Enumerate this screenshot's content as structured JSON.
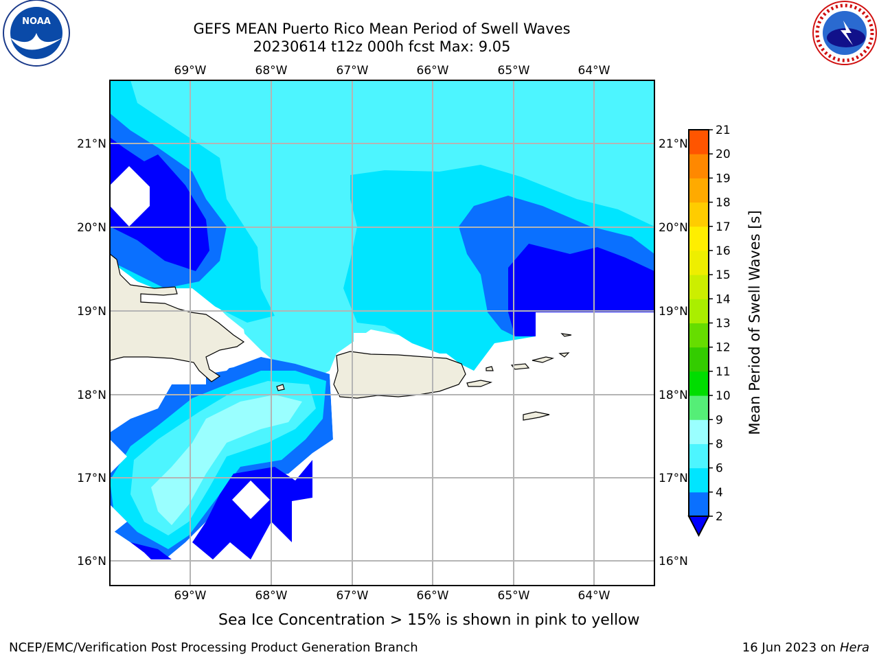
{
  "title": {
    "line1": "GEFS MEAN Puerto Rico Mean Period of Swell Waves",
    "line2": "20230614 t12z 000h fcst   Max: 9.05"
  },
  "map": {
    "lon_ticks": [
      "69°W",
      "68°W",
      "67°W",
      "66°W",
      "65°W",
      "64°W"
    ],
    "lat_ticks": [
      "21°N",
      "20°N",
      "19°N",
      "18°N",
      "17°N",
      "16°N"
    ],
    "lon_range": [
      -70,
      -63.25
    ],
    "lat_range": [
      15.7,
      21.75
    ]
  },
  "colorbar": {
    "label": "Mean Period of Swell Waves [s]",
    "ticks": [
      "2",
      "4",
      "6",
      "8",
      "9",
      "10",
      "11",
      "12",
      "13",
      "14",
      "15",
      "16",
      "17",
      "18",
      "19",
      "20",
      "21"
    ],
    "colors": [
      "#0a70ff",
      "#00e5ff",
      "#4df5ff",
      "#9affff",
      "#55ee77",
      "#00dd00",
      "#33cc00",
      "#66dd00",
      "#aaee00",
      "#ccee00",
      "#eeee00",
      "#ffee00",
      "#ffcc00",
      "#ffaa00",
      "#ff8800",
      "#ff5500",
      "#ff2a00",
      "#ff0000"
    ],
    "under_color": "#0000ff"
  },
  "colors": {
    "land": "#efedde",
    "grid": "#b4b4b4",
    "under": "#0000ff",
    "c2_4": "#0a70ff",
    "c4_6": "#00e5ff",
    "c6_8": "#4df5ff",
    "c8_9": "#9affff"
  },
  "footer": {
    "note": "Sea Ice Concentration > 15% is shown in pink to yellow",
    "credit": "NCEP/EMC/Verification Post Processing Product Generation Branch",
    "date": "16 Jun 2023 on",
    "host": "Hera"
  },
  "logos": {
    "left": "NOAA",
    "right": "NATIONAL WEATHER SERVICE"
  }
}
